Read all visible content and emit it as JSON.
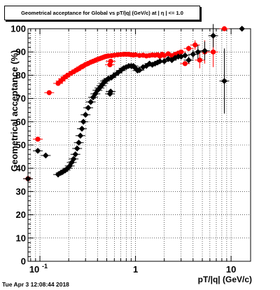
{
  "title": "Geometrical acceptance for Global vs pT/|q| (GeV/c) at | η | <= 1.0",
  "timestamp": "Tue Apr  3 12:08:44 2018",
  "chart_data": {
    "type": "scatter",
    "title": "Geometrical acceptance for Global vs pT/|q| (GeV/c) at | η | <= 1.0",
    "xlabel": "pT/|q| (GeV/c)",
    "ylabel": "Geometrical acceptance (%)",
    "xscale": "log",
    "xlim": [
      0.075,
      16
    ],
    "ylim": [
      0,
      100
    ],
    "xtick_labels": [
      "10^-1",
      "1",
      "10"
    ],
    "ytick_labels": [
      "0",
      "10",
      "20",
      "30",
      "40",
      "50",
      "60",
      "70",
      "80",
      "90",
      "100"
    ],
    "grid": true,
    "series": [
      {
        "color": "#ff0000",
        "marker": "circle",
        "x": [
          0.075,
          0.095,
          0.125,
          0.155,
          0.165,
          0.175,
          0.185,
          0.195,
          0.21,
          0.225,
          0.24,
          0.255,
          0.27,
          0.285,
          0.3,
          0.32,
          0.34,
          0.36,
          0.38,
          0.4,
          0.42,
          0.44,
          0.46,
          0.48,
          0.5,
          0.52,
          0.54,
          0.55,
          0.56,
          0.6,
          0.65,
          0.7,
          0.75,
          0.8,
          0.85,
          0.9,
          0.95,
          1.0,
          1.1,
          1.2,
          1.3,
          1.4,
          1.5,
          1.6,
          1.7,
          1.8,
          1.9,
          2.0,
          2.2,
          2.4,
          2.6,
          2.8,
          3.0,
          3.3,
          3.6,
          4.2,
          4.7,
          5.3,
          6.5,
          8.5
        ],
        "y": [
          35.5,
          52.5,
          72.5,
          76.5,
          77.5,
          78.5,
          79.3,
          80.0,
          80.8,
          81.5,
          82.2,
          82.8,
          83.5,
          84.0,
          84.6,
          85.1,
          85.6,
          86.0,
          86.4,
          86.8,
          87.1,
          87.4,
          87.7,
          88.0,
          88.2,
          88.3,
          84.5,
          86.0,
          88.4,
          88.6,
          88.8,
          88.9,
          89.0,
          89.0,
          89.0,
          88.8,
          88.7,
          88.8,
          88.5,
          88.6,
          88.3,
          88.5,
          88.7,
          88.6,
          88.8,
          88.2,
          89.0,
          88.5,
          89.2,
          88.4,
          89.0,
          89.5,
          90.0,
          85.0,
          91.5,
          93.0,
          86.5,
          90.0,
          90.0,
          100.0
        ],
        "error": [
          0,
          0,
          0,
          0,
          0,
          0,
          0,
          0,
          0,
          0,
          0,
          0,
          0,
          0,
          0,
          0,
          0,
          0,
          0,
          0,
          0,
          0,
          0,
          0,
          0,
          0,
          0,
          0,
          0,
          0,
          0,
          0,
          0,
          0,
          0,
          0,
          0,
          0,
          0,
          0,
          0,
          0,
          0,
          0,
          0,
          0,
          0,
          0,
          0,
          0,
          0,
          0,
          0,
          1.0,
          1.2,
          2.0,
          3.5,
          5.0,
          6.5,
          0
        ]
      },
      {
        "color": "#000000",
        "marker": "diamond",
        "x": [
          0.075,
          0.095,
          0.115,
          0.155,
          0.165,
          0.175,
          0.185,
          0.195,
          0.205,
          0.215,
          0.225,
          0.235,
          0.245,
          0.255,
          0.265,
          0.275,
          0.285,
          0.3,
          0.32,
          0.34,
          0.36,
          0.38,
          0.4,
          0.42,
          0.44,
          0.46,
          0.48,
          0.5,
          0.52,
          0.54,
          0.55,
          0.56,
          0.6,
          0.65,
          0.7,
          0.75,
          0.8,
          0.85,
          0.9,
          0.95,
          1.0,
          1.05,
          1.1,
          1.2,
          1.3,
          1.4,
          1.5,
          1.6,
          1.7,
          1.8,
          2.0,
          2.2,
          2.4,
          2.6,
          2.8,
          3.0,
          3.3,
          3.6,
          4.0,
          4.5,
          5.3,
          6.5,
          8.5,
          13.0
        ],
        "y": [
          35.5,
          47.5,
          45.5,
          37.3,
          38.0,
          38.6,
          39.2,
          40.0,
          41.0,
          42.5,
          44.0,
          46.0,
          48.5,
          51.0,
          54.0,
          57.0,
          60.0,
          63.0,
          66.0,
          68.5,
          70.5,
          72.0,
          73.5,
          74.5,
          75.5,
          76.5,
          77.5,
          78.0,
          78.6,
          72.0,
          73.0,
          79.0,
          80.0,
          81.0,
          82.0,
          83.0,
          83.5,
          84.0,
          84.0,
          84.0,
          83.0,
          82.0,
          82.2,
          83.5,
          84.0,
          85.0,
          84.5,
          85.0,
          85.5,
          86.0,
          86.0,
          87.0,
          86.5,
          87.5,
          88.0,
          88.0,
          88.5,
          86.5,
          89.0,
          90.0,
          90.5,
          97.0,
          77.5,
          100.0
        ],
        "error": [
          0,
          0,
          0,
          0,
          0,
          0,
          0,
          0,
          0,
          0,
          0,
          0,
          0,
          0,
          0,
          0,
          0,
          0,
          0,
          0,
          0,
          0,
          0,
          0,
          0,
          0,
          0,
          0,
          0,
          0,
          0,
          0,
          0,
          0,
          0,
          0,
          0,
          0,
          0,
          0,
          0,
          0,
          0,
          0,
          0,
          0,
          0,
          0,
          0,
          0,
          0,
          0,
          0,
          0,
          0,
          1.0,
          1.2,
          1.5,
          2.0,
          3.0,
          4.0,
          5.0,
          14.0,
          0
        ]
      }
    ]
  }
}
